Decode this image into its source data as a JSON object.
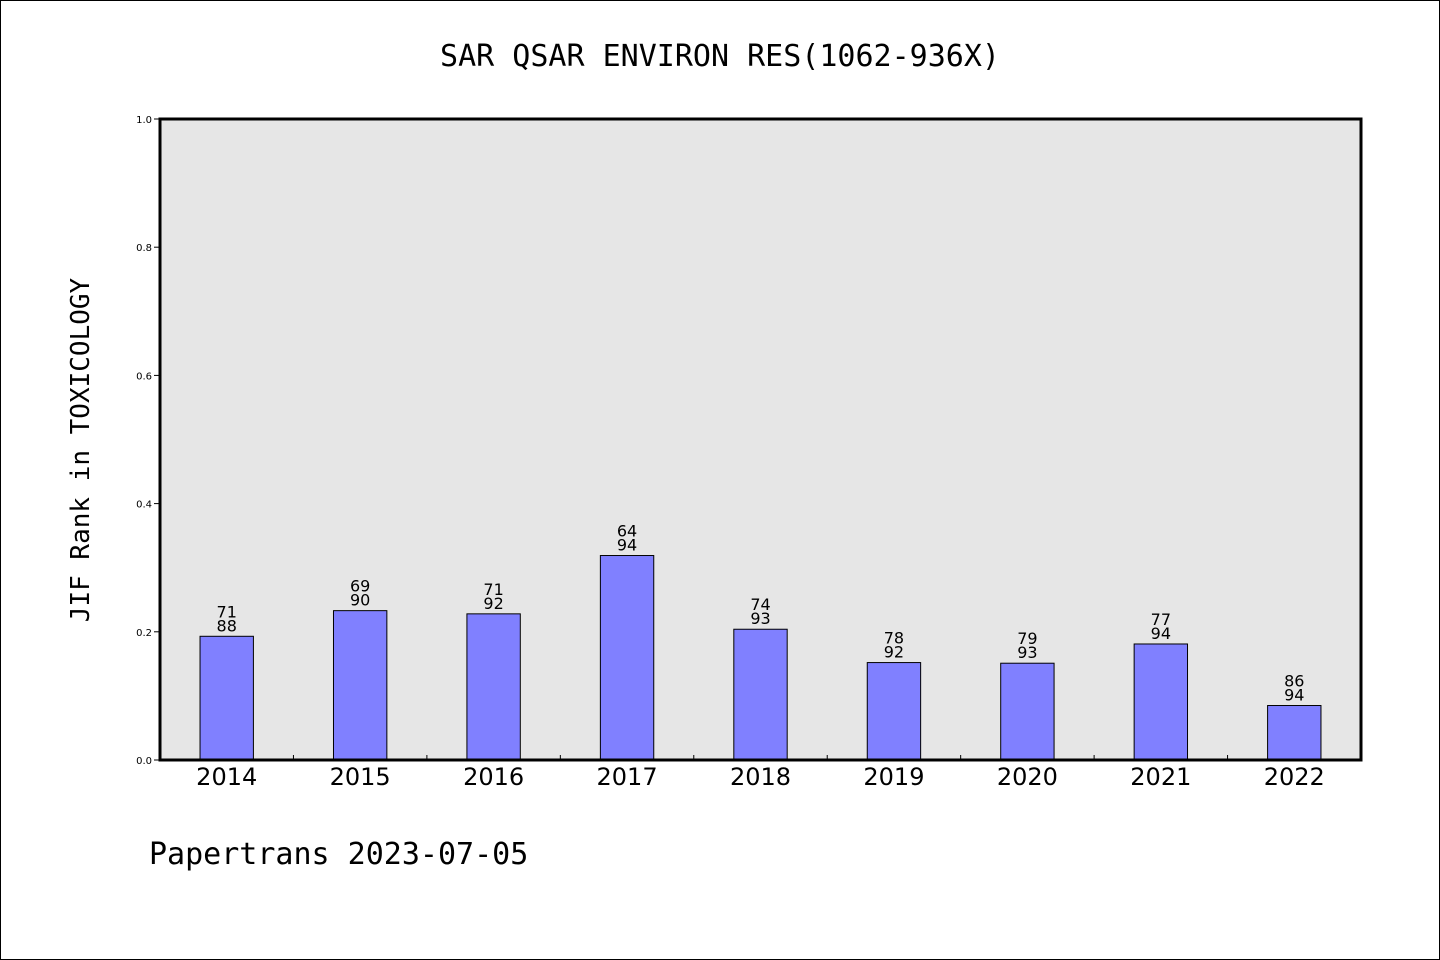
{
  "chart_data": {
    "type": "bar",
    "title": "SAR QSAR ENVIRON RES(1062-936X)",
    "ylabel": "JIF Rank in TOXICOLOGY",
    "xlabel": "",
    "ylim": [
      0,
      1.0
    ],
    "yticks": [
      "0.0",
      "0.2",
      "0.4",
      "0.6",
      "0.8",
      "1.0"
    ],
    "grid": false,
    "categories": [
      "2014",
      "2015",
      "2016",
      "2017",
      "2018",
      "2019",
      "2020",
      "2021",
      "2022"
    ],
    "values": [
      0.193,
      0.233,
      0.228,
      0.319,
      0.204,
      0.152,
      0.151,
      0.181,
      0.085
    ],
    "rank_labels": [
      "71",
      "69",
      "71",
      "64",
      "74",
      "78",
      "79",
      "77",
      "86"
    ],
    "total_labels": [
      "88",
      "90",
      "92",
      "94",
      "93",
      "92",
      "93",
      "94",
      "94"
    ],
    "bar_color": "#8080ff",
    "plot_background": "#e6e6e6"
  },
  "footer": "Papertrans 2023-07-05"
}
